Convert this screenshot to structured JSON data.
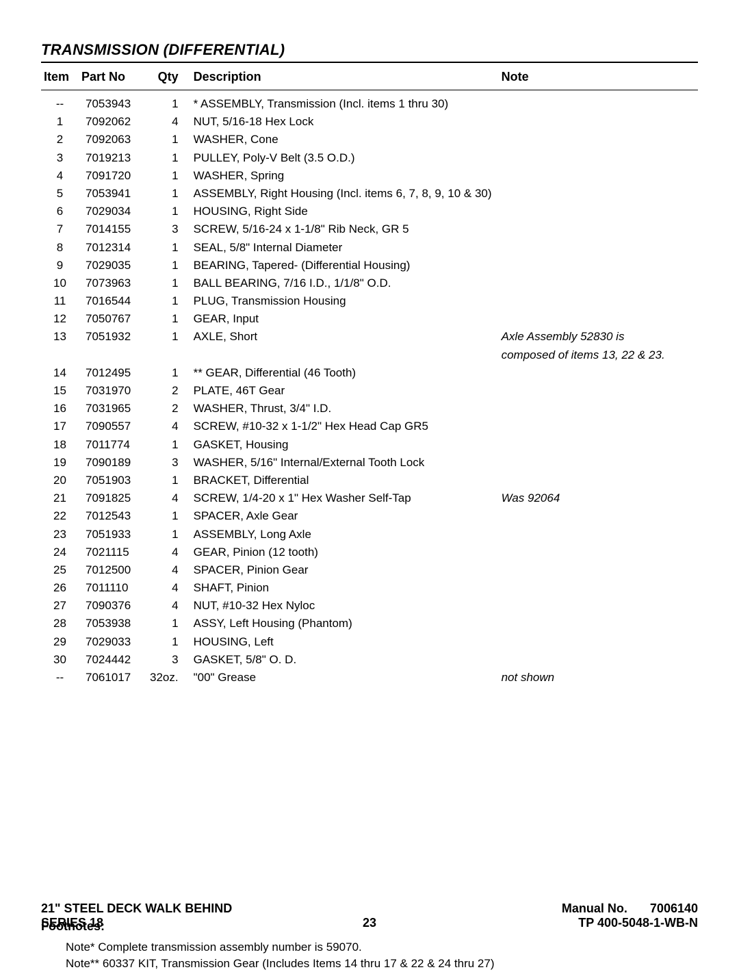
{
  "title": "TRANSMISSION (DIFFERENTIAL)",
  "columns": {
    "item": "Item",
    "part": "Part No",
    "qty": "Qty",
    "desc": "Description",
    "note": "Note"
  },
  "rows": [
    {
      "item": "--",
      "part": "7053943",
      "qty": "1",
      "desc": "* ASSEMBLY, Transmission (Incl. items 1 thru 30)",
      "note": ""
    },
    {
      "item": "1",
      "part": "7092062",
      "qty": "4",
      "desc": "NUT, 5/16-18 Hex Lock",
      "note": ""
    },
    {
      "item": "2",
      "part": "7092063",
      "qty": "1",
      "desc": "WASHER, Cone",
      "note": ""
    },
    {
      "item": "3",
      "part": "7019213",
      "qty": "1",
      "desc": "PULLEY, Poly-V Belt (3.5 O.D.)",
      "note": ""
    },
    {
      "item": "4",
      "part": "7091720",
      "qty": "1",
      "desc": "WASHER, Spring",
      "note": ""
    },
    {
      "item": "5",
      "part": "7053941",
      "qty": "1",
      "desc": "ASSEMBLY, Right Housing (Incl. items 6, 7, 8, 9, 10 & 30)",
      "note": ""
    },
    {
      "item": "6",
      "part": "7029034",
      "qty": "1",
      "desc": "HOUSING, Right Side",
      "note": ""
    },
    {
      "item": "7",
      "part": "7014155",
      "qty": "3",
      "desc": "SCREW, 5/16-24 x 1-1/8\" Rib Neck, GR 5",
      "note": ""
    },
    {
      "item": "8",
      "part": "7012314",
      "qty": "1",
      "desc": "SEAL, 5/8\" Internal Diameter",
      "note": ""
    },
    {
      "item": "9",
      "part": "7029035",
      "qty": "1",
      "desc": "BEARING, Tapered- (Differential Housing)",
      "note": ""
    },
    {
      "item": "10",
      "part": "7073963",
      "qty": "1",
      "desc": "BALL BEARING, 7/16 I.D., 1/1/8\" O.D.",
      "note": ""
    },
    {
      "item": "11",
      "part": "7016544",
      "qty": "1",
      "desc": "PLUG, Transmission Housing",
      "note": ""
    },
    {
      "item": "12",
      "part": "7050767",
      "qty": "1",
      "desc": "GEAR, Input",
      "note": ""
    },
    {
      "item": "13",
      "part": "7051932",
      "qty": "1",
      "desc": "AXLE, Short",
      "note": "Axle Assembly 52830 is"
    },
    {
      "item": "",
      "part": "",
      "qty": "",
      "desc": "",
      "note": "composed of items 13, 22 & 23."
    },
    {
      "item": "14",
      "part": "7012495",
      "qty": "1",
      "desc": "** GEAR, Differential (46 Tooth)",
      "note": ""
    },
    {
      "item": "15",
      "part": "7031970",
      "qty": "2",
      "desc": "PLATE, 46T Gear",
      "note": ""
    },
    {
      "item": "16",
      "part": "7031965",
      "qty": "2",
      "desc": "WASHER, Thrust, 3/4\" I.D.",
      "note": ""
    },
    {
      "item": "17",
      "part": "7090557",
      "qty": "4",
      "desc": "SCREW, #10-32 x 1-1/2\" Hex Head Cap GR5",
      "note": ""
    },
    {
      "item": "18",
      "part": "7011774",
      "qty": "1",
      "desc": "GASKET, Housing",
      "note": ""
    },
    {
      "item": "19",
      "part": "7090189",
      "qty": "3",
      "desc": "WASHER, 5/16\" Internal/External Tooth Lock",
      "note": ""
    },
    {
      "item": "20",
      "part": "7051903",
      "qty": "1",
      "desc": "BRACKET, Differential",
      "note": ""
    },
    {
      "item": "21",
      "part": "7091825",
      "qty": "4",
      "desc": "SCREW, 1/4-20 x 1\" Hex Washer Self-Tap",
      "note": "Was 92064"
    },
    {
      "item": "22",
      "part": "7012543",
      "qty": "1",
      "desc": "SPACER, Axle Gear",
      "note": ""
    },
    {
      "item": "23",
      "part": "7051933",
      "qty": "1",
      "desc": "ASSEMBLY, Long Axle",
      "note": ""
    },
    {
      "item": "24",
      "part": "7021115",
      "qty": "4",
      "desc": "GEAR, Pinion (12 tooth)",
      "note": ""
    },
    {
      "item": "25",
      "part": "7012500",
      "qty": "4",
      "desc": "SPACER, Pinion Gear",
      "note": ""
    },
    {
      "item": "26",
      "part": "7011110",
      "qty": "4",
      "desc": "SHAFT, Pinion",
      "note": ""
    },
    {
      "item": "27",
      "part": "7090376",
      "qty": "4",
      "desc": "NUT, #10-32 Hex Nyloc",
      "note": ""
    },
    {
      "item": "28",
      "part": "7053938",
      "qty": "1",
      "desc": "ASSY, Left Housing (Phantom)",
      "note": ""
    },
    {
      "item": "29",
      "part": "7029033",
      "qty": "1",
      "desc": "HOUSING, Left",
      "note": ""
    },
    {
      "item": "30",
      "part": "7024442",
      "qty": "3",
      "desc": "GASKET, 5/8\" O. D.",
      "note": ""
    },
    {
      "item": "--",
      "part": "7061017",
      "qty": "32oz.",
      "desc": "\"00\" Grease",
      "note": "not shown"
    }
  ],
  "footnotes": {
    "heading": "Footnotes:",
    "lines": [
      "Note* Complete transmission assembly number is 59070.",
      "Note** 60337 KIT, Transmission Gear (Includes Items 14 thru 17 & 22 & 24 thru 27)"
    ]
  },
  "footer": {
    "product": "21\" STEEL DECK WALK BEHIND",
    "series": "SERIES 18",
    "manual_label": "Manual No.",
    "manual_no": "7006140",
    "page": "23",
    "tp": "TP 400-5048-1-WB-N"
  }
}
